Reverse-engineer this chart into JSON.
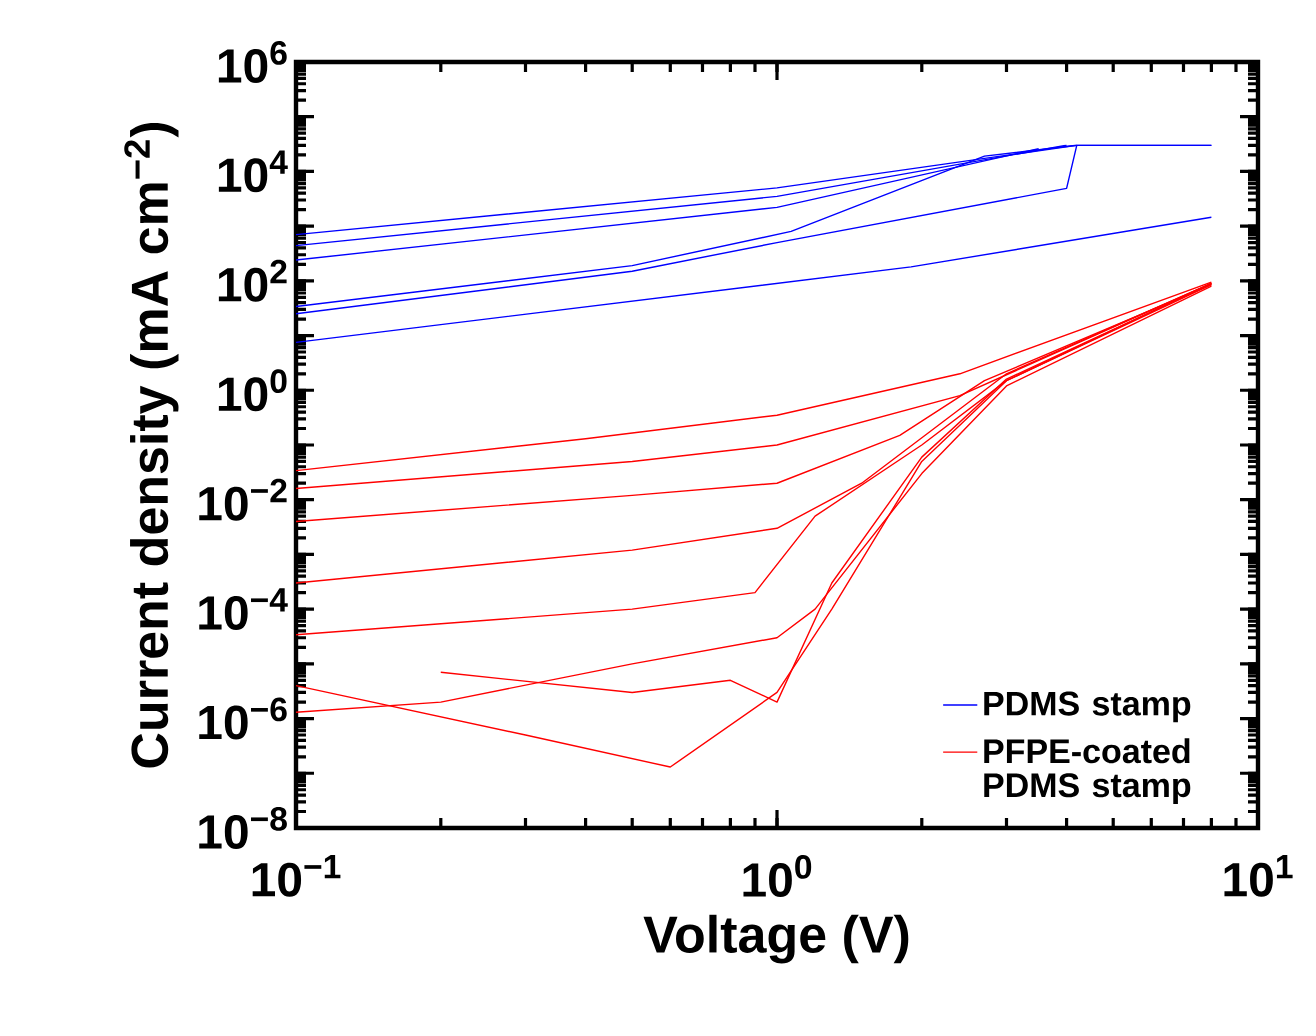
{
  "chart_data": {
    "type": "line",
    "xlabel": "Voltage (V)",
    "ylabel": "Current density (mA cm$^{−2}$)",
    "log": "xy",
    "xlim": [
      0.1,
      10
    ],
    "ylim": [
      1e-08,
      1000000.0
    ],
    "xticks": [
      {
        "value": 0.1,
        "label": "10$^{−1}$"
      },
      {
        "value": 1,
        "label": "10$^{0}$"
      },
      {
        "value": 10,
        "label": "10$^{1}$"
      }
    ],
    "yticks": [
      {
        "value": 1e-08,
        "label": "10$^{−8}$"
      },
      {
        "value": 1e-07,
        "label": null
      },
      {
        "value": 1e-06,
        "label": "10$^{−6}$"
      },
      {
        "value": 1e-05,
        "label": null
      },
      {
        "value": 0.0001,
        "label": "10$^{−4}$"
      },
      {
        "value": 0.001,
        "label": null
      },
      {
        "value": 0.01,
        "label": "10$^{−2}$"
      },
      {
        "value": 0.1,
        "label": null
      },
      {
        "value": 1,
        "label": "10$^{0}$"
      },
      {
        "value": 10,
        "label": null
      },
      {
        "value": 100,
        "label": "10$^{2}$"
      },
      {
        "value": 1000,
        "label": null
      },
      {
        "value": 10000.0,
        "label": "10$^{4}$"
      },
      {
        "value": 100000.0,
        "label": null
      },
      {
        "value": 1000000.0,
        "label": "10$^{6}$"
      }
    ],
    "legend": "bottom right",
    "marker": "none",
    "line_style": "solid",
    "grid": false,
    "series": [
      {
        "name": "PDMS stamp",
        "color": "#0000ff",
        "x": [
          0.1,
          1,
          4.2,
          8
        ],
        "values": [
          700,
          5000,
          30000,
          30000
        ]
      },
      {
        "color": "#0000ff",
        "x": [
          0.1,
          1,
          4.0
        ],
        "values": [
          440,
          3500,
          30000
        ]
      },
      {
        "color": "#0000ff",
        "x": [
          0.1,
          1,
          3.5
        ],
        "values": [
          240,
          2200,
          26000
        ]
      },
      {
        "color": "#0000ff",
        "x": [
          0.1,
          0.5,
          1.07,
          2.7,
          4.2
        ],
        "values": [
          34,
          190,
          800,
          19000,
          30000
        ]
      },
      {
        "color": "#0000ff",
        "x": [
          0.1,
          0.5,
          1,
          4.0,
          4.2,
          8
        ],
        "values": [
          25,
          150,
          500,
          4900,
          30000,
          30000
        ]
      },
      {
        "color": "#0000ff",
        "x": [
          0.1,
          1.9,
          8
        ],
        "values": [
          7.5,
          180,
          1450
        ]
      },
      {
        "name": "PFPE-coated PDMS stamp",
        "color": "#ff0000",
        "x": [
          0.1,
          0.4,
          1,
          2.4,
          8
        ],
        "values": [
          0.034,
          0.13,
          0.35,
          2,
          95
        ]
      },
      {
        "color": "#ff0000",
        "x": [
          0.1,
          0.5,
          1,
          2.4,
          8
        ],
        "values": [
          0.016,
          0.05,
          0.1,
          0.8,
          90
        ]
      },
      {
        "color": "#ff0000",
        "x": [
          0.1,
          0.5,
          1,
          1.8,
          2.7,
          8
        ],
        "values": [
          0.004,
          0.012,
          0.02,
          0.15,
          1.5,
          85
        ]
      },
      {
        "color": "#ff0000",
        "x": [
          0.1,
          0.5,
          1,
          1.5,
          3,
          8
        ],
        "values": [
          0.0003,
          0.0012,
          0.003,
          0.02,
          2,
          90
        ]
      },
      {
        "color": "#ff0000",
        "x": [
          0.1,
          0.5,
          0.9,
          1.2,
          2,
          3,
          8
        ],
        "values": [
          3.4e-05,
          0.0001,
          0.0002,
          0.005,
          0.1,
          1.5,
          90
        ]
      },
      {
        "color": "#ff0000",
        "x": [
          0.1,
          0.3,
          0.6,
          1,
          1.3,
          2,
          3,
          8
        ],
        "values": [
          4e-06,
          5e-07,
          1.3e-07,
          3e-06,
          0.0001,
          0.05,
          1.5,
          85
        ]
      },
      {
        "color": "#ff0000",
        "x": [
          0.1,
          0.2,
          0.5,
          1,
          1.2,
          2,
          3,
          8
        ],
        "values": [
          1.3e-06,
          2e-06,
          1e-05,
          3e-05,
          0.0001,
          0.03,
          1.2,
          80
        ]
      },
      {
        "color": "#ff0000",
        "x": [
          0.2,
          0.5,
          0.8,
          1,
          1.3,
          2,
          3,
          8
        ],
        "values": [
          7e-06,
          3e-06,
          5e-06,
          2e-06,
          0.0003,
          0.06,
          1.6,
          88
        ]
      }
    ]
  }
}
